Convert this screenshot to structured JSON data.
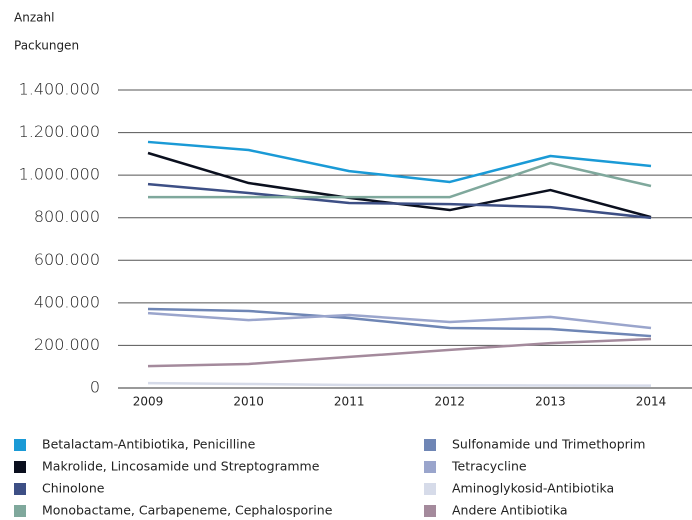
{
  "chart_data": {
    "type": "line",
    "ylabel": [
      "Anzahl",
      "Packungen"
    ],
    "x": [
      "2009",
      "2010",
      "2011",
      "2012",
      "2013",
      "2014"
    ],
    "ylim": [
      0,
      1400000
    ],
    "yticks": [
      0,
      {
        "value": 200000,
        "label": "200.000"
      },
      {
        "value": 400000,
        "label": "400.000"
      },
      {
        "value": 600000,
        "label": "600.000"
      },
      {
        "value": 800000,
        "label": "800.000"
      },
      {
        "value": 1000000,
        "label": "1.000.000"
      },
      {
        "value": 1200000,
        "label": "1.200.000"
      },
      {
        "value": 1400000,
        "label": "1.400.000"
      }
    ],
    "grid": true,
    "series": [
      {
        "name": "Betalactam-Antibiotika, Penicilline",
        "color": "#1a9ad6",
        "values": [
          1156000,
          1118000,
          1019000,
          968000,
          1090000,
          1043000
        ]
      },
      {
        "name": "Makrolide, Lincosamide und Streptogramme",
        "color": "#0a0f1e",
        "values": [
          1104000,
          963000,
          893000,
          836000,
          930000,
          803000
        ]
      },
      {
        "name": "Chinolone",
        "color": "#3d4f85",
        "values": [
          958000,
          916000,
          869000,
          864000,
          850000,
          799000
        ]
      },
      {
        "name": "Monobactame, Carbapeneme, Cephalosporine",
        "color": "#7fa89c",
        "values": [
          897000,
          897000,
          897000,
          897000,
          1057000,
          949000
        ]
      },
      {
        "name": "Sulfonamide und Trimethoprim",
        "color": "#6f86b5",
        "values": [
          371000,
          362000,
          329000,
          282000,
          277000,
          244000
        ]
      },
      {
        "name": "Tetracycline",
        "color": "#9aa5cc",
        "values": [
          352000,
          319000,
          343000,
          310000,
          334000,
          282000
        ]
      },
      {
        "name": "Aminoglykosid-Antibiotika",
        "color": "#d6dbe9",
        "values": [
          23000,
          19000,
          14000,
          13000,
          12000,
          11000
        ]
      },
      {
        "name": "Andere Antibiotika",
        "color": "#a48a9c",
        "values": [
          103000,
          113000,
          146000,
          179000,
          211000,
          230000
        ]
      }
    ]
  }
}
